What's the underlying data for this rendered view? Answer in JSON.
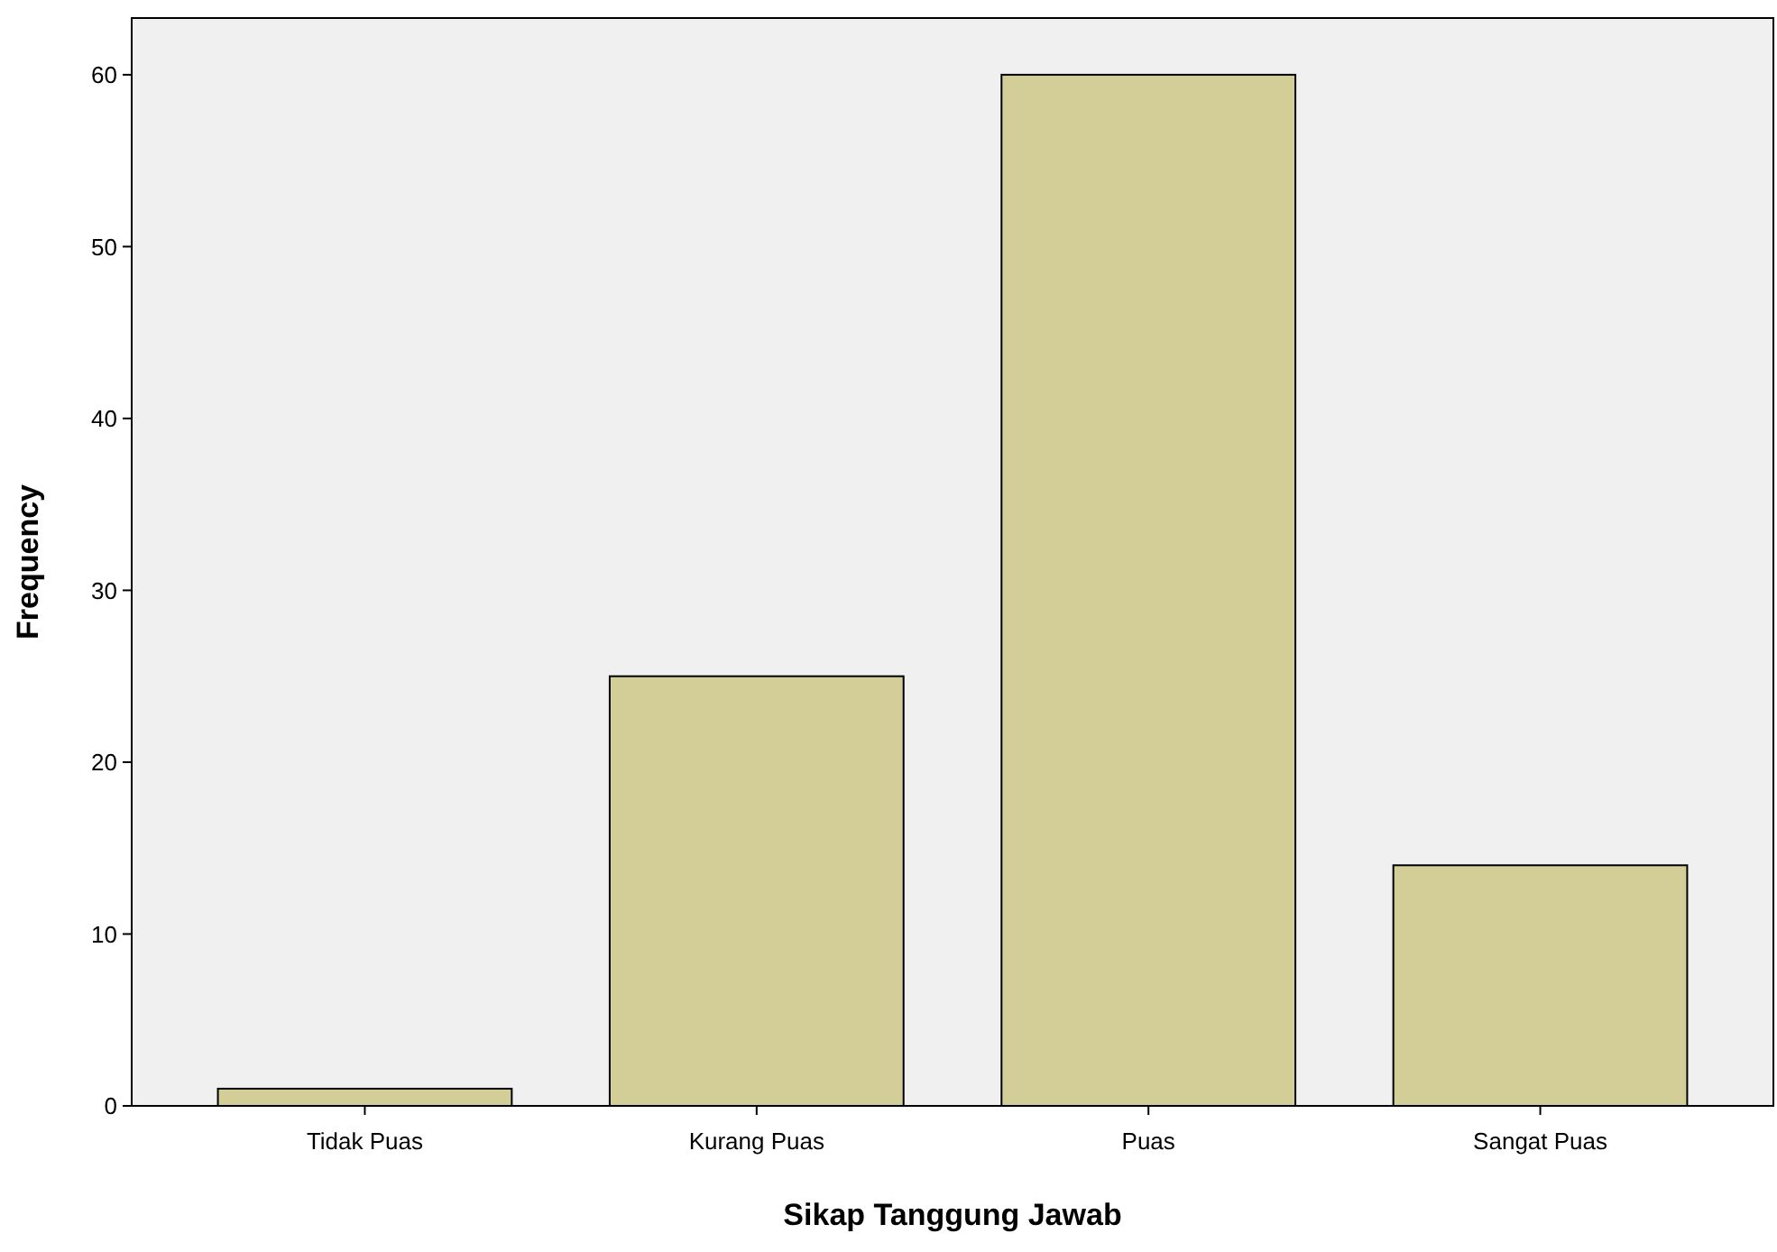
{
  "chart_data": {
    "type": "bar",
    "xlabel": "Sikap Tanggung Jawab",
    "ylabel": "Frequency",
    "categories": [
      "Tidak Puas",
      "Kurang Puas",
      "Puas",
      "Sangat Puas"
    ],
    "values": [
      1,
      25,
      60,
      14
    ],
    "color": "#d3ce97",
    "ylim": [
      0,
      63.3
    ],
    "yticks": [
      0,
      10,
      20,
      30,
      40,
      50,
      60
    ]
  }
}
